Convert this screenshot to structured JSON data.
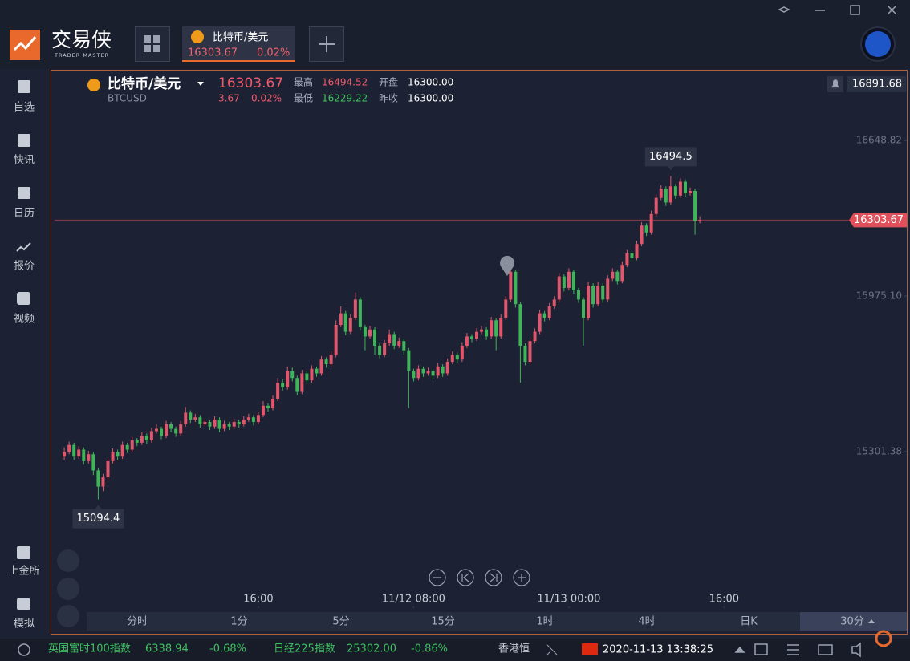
{
  "window": {
    "logo": "交易侠",
    "logo_sub": "TRADER MASTER",
    "tab": {
      "name": "比特币/美元",
      "price": "16303.67",
      "change_pct": "0.02%"
    }
  },
  "sidebar": [
    {
      "label": "自选"
    },
    {
      "label": "快讯"
    },
    {
      "label": "日历"
    },
    {
      "label": "报价"
    },
    {
      "label": "视频"
    },
    {
      "label": "上金所"
    },
    {
      "label": "模拟"
    }
  ],
  "header": {
    "name": "比特币/美元",
    "symbol": "BTCUSD",
    "price": "16303.67",
    "change": "3.67",
    "change_pct": "0.02%",
    "high_label": "最高",
    "high": "16494.52",
    "open_label": "开盘",
    "open": "16300.00",
    "low_label": "最低",
    "low": "16229.22",
    "prev_close_label": "昨收",
    "prev_close": "16300.00"
  },
  "chart": {
    "type": "candlestick",
    "up_color": "#e0566c",
    "down_color": "#3fb55a",
    "ylim": [
      14617.2,
      16950.95
    ],
    "yticks": [
      16648.82,
      {
        "value": 15975.1,
        "label": "15975.10"
      },
      15301.38
    ],
    "xlim": [
      -2,
      172
    ],
    "xticks": [
      {
        "value": 40,
        "label": "16:00"
      },
      {
        "value": 72,
        "label": "11/12 08:00"
      },
      {
        "value": 104,
        "label": "11/13 00:00"
      },
      {
        "value": 136,
        "label": "16:00"
      }
    ],
    "last_price": 16303.67,
    "alert_price": 16891.68,
    "candles": [
      [
        15280,
        15320,
        15265,
        15300
      ],
      [
        15300,
        15345,
        15290,
        15330
      ],
      [
        15330,
        15340,
        15265,
        15280
      ],
      [
        15280,
        15325,
        15270,
        15310
      ],
      [
        15310,
        15320,
        15245,
        15260
      ],
      [
        15260,
        15305,
        15250,
        15290
      ],
      [
        15290,
        15300,
        15200,
        15220
      ],
      [
        15220,
        15230,
        15094.4,
        15150
      ],
      [
        15150,
        15205,
        15130,
        15190
      ],
      [
        15190,
        15275,
        15180,
        15260
      ],
      [
        15260,
        15315,
        15250,
        15300
      ],
      [
        15300,
        15310,
        15265,
        15280
      ],
      [
        15280,
        15345,
        15270,
        15330
      ],
      [
        15330,
        15340,
        15295,
        15310
      ],
      [
        15310,
        15365,
        15300,
        15350
      ],
      [
        15350,
        15360,
        15325,
        15340
      ],
      [
        15340,
        15385,
        15330,
        15370
      ],
      [
        15370,
        15380,
        15335,
        15350
      ],
      [
        15350,
        15405,
        15340,
        15390
      ],
      [
        15390,
        15420,
        15380,
        15400
      ],
      [
        15400,
        15410,
        15355,
        15370
      ],
      [
        15370,
        15435,
        15360,
        15420
      ],
      [
        15420,
        15430,
        15385,
        15400
      ],
      [
        15400,
        15410,
        15365,
        15380
      ],
      [
        15380,
        15435,
        15370,
        15420
      ],
      [
        15420,
        15495,
        15410,
        15470
      ],
      [
        15470,
        15480,
        15425,
        15440
      ],
      [
        15440,
        15465,
        15430,
        15450
      ],
      [
        15450,
        15460,
        15405,
        15420
      ],
      [
        15420,
        15445,
        15410,
        15430
      ],
      [
        15430,
        15440,
        15395,
        15410
      ],
      [
        15410,
        15455,
        15400,
        15440
      ],
      [
        15440,
        15450,
        15385,
        15400
      ],
      [
        15400,
        15435,
        15390,
        15420
      ],
      [
        15420,
        15430,
        15395,
        15410
      ],
      [
        15410,
        15445,
        15400,
        15430
      ],
      [
        15430,
        15440,
        15405,
        15420
      ],
      [
        15420,
        15455,
        15410,
        15440
      ],
      [
        15440,
        15465,
        15430,
        15450
      ],
      [
        15450,
        15460,
        15415,
        15430
      ],
      [
        15430,
        15475,
        15420,
        15460
      ],
      [
        15460,
        15520,
        15450,
        15500
      ],
      [
        15500,
        15510,
        15475,
        15490
      ],
      [
        15490,
        15545,
        15480,
        15530
      ],
      [
        15530,
        15620,
        15520,
        15600
      ],
      [
        15600,
        15615,
        15565,
        15580
      ],
      [
        15580,
        15670,
        15570,
        15650
      ],
      [
        15650,
        15665,
        15605,
        15620
      ],
      [
        15620,
        15630,
        15545,
        15560
      ],
      [
        15560,
        15655,
        15550,
        15640
      ],
      [
        15640,
        15650,
        15595,
        15610
      ],
      [
        15610,
        15675,
        15600,
        15660
      ],
      [
        15660,
        15670,
        15625,
        15640
      ],
      [
        15640,
        15715,
        15630,
        15700
      ],
      [
        15700,
        15710,
        15665,
        15680
      ],
      [
        15680,
        15735,
        15670,
        15720
      ],
      [
        15720,
        15870,
        15710,
        15850
      ],
      [
        15850,
        15930,
        15840,
        15900
      ],
      [
        15900,
        15910,
        15805,
        15820
      ],
      [
        15820,
        15895,
        15810,
        15880
      ],
      [
        15880,
        15990,
        15870,
        15960
      ],
      [
        15960,
        15970,
        15825,
        15840
      ],
      [
        15840,
        15850,
        15740,
        15800
      ],
      [
        15800,
        15845,
        15790,
        15830
      ],
      [
        15830,
        15840,
        15720,
        15760
      ],
      [
        15760,
        15770,
        15705,
        15720
      ],
      [
        15720,
        15785,
        15710,
        15770
      ],
      [
        15770,
        15830,
        15760,
        15810
      ],
      [
        15810,
        15820,
        15745,
        15760
      ],
      [
        15760,
        15795,
        15750,
        15780
      ],
      [
        15780,
        15790,
        15720,
        15740
      ],
      [
        15740,
        15750,
        15490,
        15650
      ],
      [
        15650,
        15660,
        15605,
        15620
      ],
      [
        15620,
        15675,
        15610,
        15660
      ],
      [
        15660,
        15670,
        15625,
        15640
      ],
      [
        15640,
        15665,
        15630,
        15650
      ],
      [
        15650,
        15660,
        15615,
        15630
      ],
      [
        15630,
        15685,
        15620,
        15670
      ],
      [
        15670,
        15680,
        15625,
        15640
      ],
      [
        15640,
        15705,
        15630,
        15690
      ],
      [
        15690,
        15735,
        15680,
        15720
      ],
      [
        15720,
        15730,
        15685,
        15700
      ],
      [
        15700,
        15775,
        15690,
        15760
      ],
      [
        15760,
        15815,
        15750,
        15800
      ],
      [
        15800,
        15810,
        15775,
        15790
      ],
      [
        15790,
        15835,
        15780,
        15820
      ],
      [
        15820,
        15845,
        15810,
        15830
      ],
      [
        15830,
        15840,
        15785,
        15800
      ],
      [
        15800,
        15885,
        15790,
        15870
      ],
      [
        15870,
        15880,
        15740,
        15800
      ],
      [
        15800,
        15895,
        15790,
        15880
      ],
      [
        15880,
        15975,
        15870,
        15960
      ],
      [
        15960,
        16120,
        15950,
        16080
      ],
      [
        16080,
        16090,
        15925,
        15940
      ],
      [
        15940,
        15950,
        15600,
        15760
      ],
      [
        15760,
        15770,
        15675,
        15690
      ],
      [
        15690,
        15795,
        15680,
        15780
      ],
      [
        15780,
        15835,
        15770,
        15820
      ],
      [
        15820,
        15915,
        15810,
        15900
      ],
      [
        15900,
        15910,
        15865,
        15880
      ],
      [
        15880,
        15945,
        15870,
        15930
      ],
      [
        15930,
        15975,
        15920,
        15960
      ],
      [
        15960,
        16075,
        15950,
        16060
      ],
      [
        16060,
        16070,
        15995,
        16010
      ],
      [
        16010,
        16095,
        16000,
        16080
      ],
      [
        16080,
        16090,
        15985,
        16000
      ],
      [
        16000,
        16010,
        15945,
        15960
      ],
      [
        15960,
        15970,
        15760,
        15880
      ],
      [
        15880,
        16035,
        15870,
        16020
      ],
      [
        16020,
        16030,
        15925,
        15940
      ],
      [
        15940,
        16035,
        15930,
        16020
      ],
      [
        16020,
        16030,
        15945,
        15960
      ],
      [
        15960,
        16065,
        15950,
        16050
      ],
      [
        16050,
        16095,
        16040,
        16080
      ],
      [
        16080,
        16090,
        16025,
        16040
      ],
      [
        16040,
        16125,
        16030,
        16110
      ],
      [
        16110,
        16175,
        16100,
        16160
      ],
      [
        16160,
        16170,
        16125,
        16140
      ],
      [
        16140,
        16215,
        16130,
        16200
      ],
      [
        16200,
        16295,
        16190,
        16280
      ],
      [
        16280,
        16290,
        16235,
        16250
      ],
      [
        16250,
        16345,
        16240,
        16330
      ],
      [
        16330,
        16415,
        16320,
        16400
      ],
      [
        16400,
        16455,
        16390,
        16440
      ],
      [
        16440,
        16450,
        16365,
        16380
      ],
      [
        16380,
        16494.5,
        16370,
        16450
      ],
      [
        16450,
        16460,
        16395,
        16410
      ],
      [
        16410,
        16485,
        16400,
        16470
      ],
      [
        16470,
        16480,
        16405,
        16420
      ],
      [
        16420,
        16445,
        16410,
        16430
      ],
      [
        16430,
        16440,
        16240,
        16300
      ],
      [
        16300,
        16320,
        16290,
        16303.67
      ]
    ]
  },
  "timeframes": [
    "分时",
    "1分",
    "5分",
    "15分",
    "1时",
    "4时",
    "日K",
    "30分"
  ],
  "ticker": [
    {
      "name": "英国富时100指数",
      "price": "6338.94",
      "change": "-0.68%"
    },
    {
      "name": "日经225指数",
      "price": "25302.00",
      "change": "-0.86%"
    },
    {
      "name": "香港恒"
    }
  ],
  "datetime": "2020-11-13 13:38:25"
}
